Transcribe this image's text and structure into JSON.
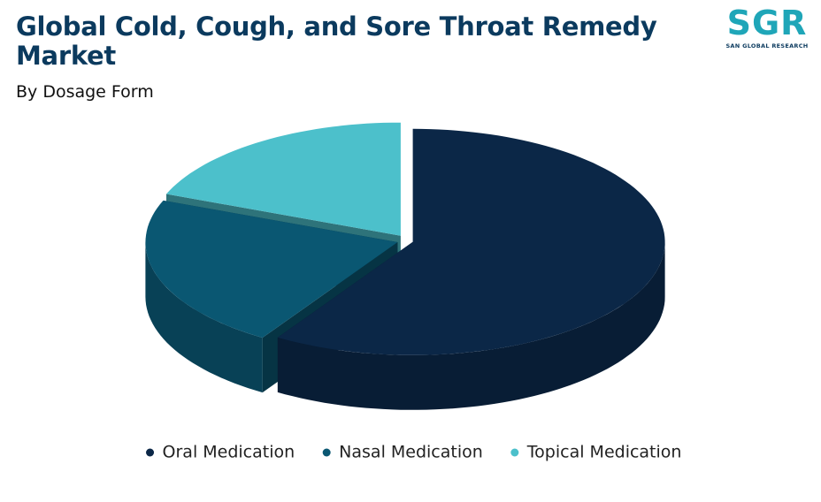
{
  "chart_data": {
    "type": "pie",
    "title": "Global Cold, Cough, and Sore Throat Remedy Market",
    "subtitle": "By Dosage Form",
    "categories": [
      "Oral Medication",
      "Nasal Medication",
      "Topical Medication"
    ],
    "values": [
      59,
      22,
      19
    ],
    "colors": [
      "#0b2747",
      "#0a5772",
      "#4cc0cb"
    ]
  },
  "logo": {
    "mark": "SGR",
    "name": "SAN GLOBAL RESEARCH"
  }
}
